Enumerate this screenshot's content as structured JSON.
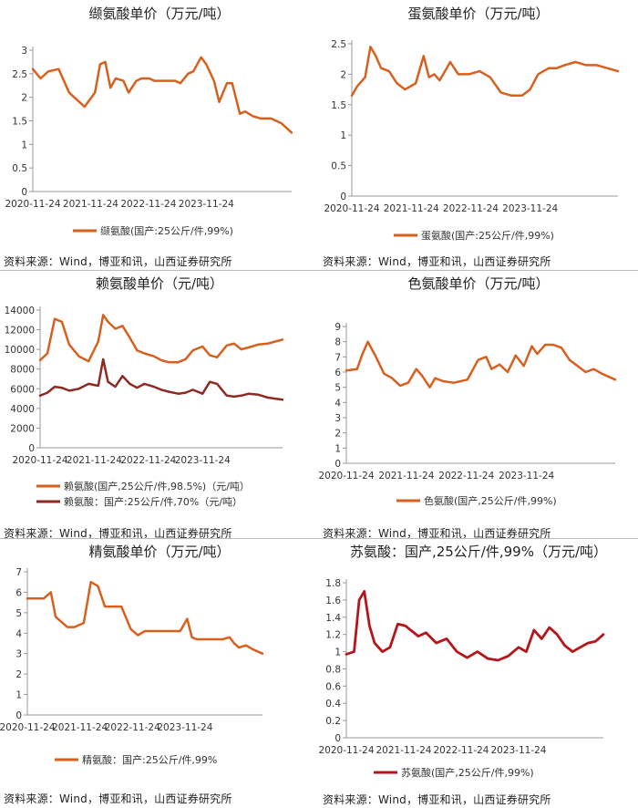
{
  "source_label": "资料来源：Wind，博亚和讯，山西证券研究所",
  "colors": {
    "orange": "#D7601F",
    "darkred": "#8F2A22",
    "red": "#B5161C",
    "axis": "#999999"
  },
  "chart_data": [
    {
      "type": "line",
      "title": "缬氨酸单价（万元/吨）",
      "xlabels": [
        "2020-11-24",
        "2021-11-24",
        "2022-11-24",
        "2023-11-24"
      ],
      "yticks": [
        "0",
        "0.5",
        "1",
        "1.5",
        "2",
        "2.5",
        "3"
      ],
      "ylim": [
        0,
        3
      ],
      "x": [
        0,
        0.03,
        0.06,
        0.1,
        0.14,
        0.17,
        0.2,
        0.24,
        0.26,
        0.28,
        0.3,
        0.32,
        0.35,
        0.37,
        0.4,
        0.42,
        0.45,
        0.47,
        0.55,
        0.57,
        0.6,
        0.62,
        0.65,
        0.67,
        0.7,
        0.72,
        0.75,
        0.77,
        0.8,
        0.82,
        0.85,
        0.88,
        0.92,
        0.96,
        1.0
      ],
      "series": [
        {
          "name": "缬氨酸(国产:25公斤/件,99%)",
          "color": "#D7601F",
          "width": 2.5,
          "values": [
            2.6,
            2.4,
            2.55,
            2.6,
            2.1,
            1.95,
            1.8,
            2.1,
            2.7,
            2.75,
            2.2,
            2.4,
            2.35,
            2.1,
            2.35,
            2.4,
            2.4,
            2.35,
            2.35,
            2.3,
            2.5,
            2.55,
            2.85,
            2.7,
            2.35,
            1.9,
            2.3,
            2.3,
            1.65,
            1.7,
            1.6,
            1.55,
            1.55,
            1.45,
            1.25
          ]
        }
      ]
    },
    {
      "type": "line",
      "title": "蛋氨酸单价（万元/吨）",
      "xlabels": [
        "2020-11-24",
        "2021-11-24",
        "2022-11-24",
        "2023-11-24"
      ],
      "yticks": [
        "0",
        "0.5",
        "1",
        "1.5",
        "2",
        "2.5"
      ],
      "ylim": [
        0,
        2.5
      ],
      "x": [
        0,
        0.02,
        0.05,
        0.07,
        0.09,
        0.11,
        0.14,
        0.17,
        0.2,
        0.24,
        0.27,
        0.29,
        0.31,
        0.33,
        0.37,
        0.4,
        0.44,
        0.48,
        0.52,
        0.56,
        0.6,
        0.64,
        0.67,
        0.7,
        0.74,
        0.77,
        0.8,
        0.84,
        0.88,
        0.92,
        0.96,
        1.0
      ],
      "series": [
        {
          "name": "蛋氨酸(国产:25公斤/件,99%)",
          "color": "#D7601F",
          "width": 2.5,
          "values": [
            1.65,
            1.8,
            1.95,
            2.45,
            2.3,
            2.1,
            2.05,
            1.85,
            1.75,
            1.85,
            2.3,
            1.95,
            2.0,
            1.9,
            2.2,
            2.0,
            2.0,
            2.05,
            1.95,
            1.7,
            1.65,
            1.65,
            1.75,
            2.0,
            2.1,
            2.1,
            2.15,
            2.2,
            2.15,
            2.15,
            2.1,
            2.05
          ]
        }
      ]
    },
    {
      "type": "line",
      "title": "赖氨酸单价（元/吨）",
      "xlabels": [
        "2020-11-24",
        "2021-11-24",
        "2022-11-24",
        "2023-11-24"
      ],
      "yticks": [
        "0",
        "2000",
        "4000",
        "6000",
        "8000",
        "10000",
        "12000",
        "14000"
      ],
      "ylim": [
        0,
        14000
      ],
      "x": [
        0,
        0.03,
        0.06,
        0.09,
        0.12,
        0.16,
        0.2,
        0.24,
        0.26,
        0.28,
        0.31,
        0.34,
        0.37,
        0.4,
        0.43,
        0.47,
        0.5,
        0.53,
        0.57,
        0.6,
        0.63,
        0.67,
        0.7,
        0.73,
        0.77,
        0.8,
        0.83,
        0.86,
        0.9,
        0.94,
        0.97,
        1.0
      ],
      "series": [
        {
          "name": "赖氨酸(国产,25公斤/件,98.5%)（元/吨）",
          "color": "#D7601F",
          "width": 2.5,
          "values": [
            8900,
            9600,
            13100,
            12800,
            10500,
            9300,
            8800,
            10800,
            13500,
            12800,
            12100,
            12400,
            11200,
            9900,
            9600,
            9300,
            8900,
            8700,
            8700,
            9000,
            9900,
            10300,
            9400,
            9200,
            10400,
            10600,
            10000,
            10200,
            10500,
            10600,
            10800,
            11000
          ]
        },
        {
          "name": "赖氨酸：国产:25公斤/件,70%（元/吨）",
          "color": "#8F2A22",
          "width": 2.5,
          "values": [
            5300,
            5600,
            6200,
            6100,
            5800,
            6000,
            6500,
            6300,
            9000,
            6700,
            6200,
            7300,
            6500,
            6100,
            6500,
            6200,
            5900,
            5700,
            5500,
            5600,
            5900,
            5500,
            6700,
            6500,
            5300,
            5200,
            5300,
            5500,
            5400,
            5100,
            5000,
            4900
          ]
        }
      ]
    },
    {
      "type": "line",
      "title": "色氨酸单价（万元/吨）",
      "xlabels": [
        "2020-11-24",
        "2021-11-24",
        "2022-11-24",
        "2023-11-24"
      ],
      "yticks": [
        "0",
        "1",
        "2",
        "3",
        "4",
        "5",
        "6",
        "7",
        "8",
        "9"
      ],
      "ylim": [
        0,
        9
      ],
      "x": [
        0,
        0.04,
        0.06,
        0.08,
        0.11,
        0.14,
        0.17,
        0.2,
        0.23,
        0.26,
        0.28,
        0.31,
        0.33,
        0.36,
        0.4,
        0.45,
        0.49,
        0.52,
        0.54,
        0.57,
        0.6,
        0.63,
        0.66,
        0.69,
        0.71,
        0.74,
        0.77,
        0.8,
        0.83,
        0.86,
        0.89,
        0.92,
        0.95,
        1.0
      ],
      "series": [
        {
          "name": "色氨酸(国产,25公斤/件,99%)",
          "color": "#D7601F",
          "width": 2.5,
          "values": [
            6.1,
            6.2,
            7.2,
            8.0,
            7.0,
            5.9,
            5.6,
            5.1,
            5.3,
            6.2,
            5.8,
            5.0,
            5.6,
            5.4,
            5.3,
            5.5,
            6.8,
            7.0,
            6.2,
            6.5,
            6.0,
            7.1,
            6.4,
            7.7,
            7.2,
            7.8,
            7.8,
            7.6,
            6.8,
            6.4,
            6.0,
            6.2,
            5.9,
            5.5
          ]
        }
      ]
    },
    {
      "type": "line",
      "title": "精氨酸单价（万元/吨）",
      "xlabels": [
        "2020-11-24",
        "2021-11-24",
        "2022-11-24",
        "2023-11-24"
      ],
      "yticks": [
        "0",
        "1",
        "2",
        "3",
        "4",
        "5",
        "6",
        "7"
      ],
      "ylim": [
        0,
        7
      ],
      "x": [
        0,
        0.07,
        0.1,
        0.12,
        0.14,
        0.17,
        0.2,
        0.24,
        0.27,
        0.3,
        0.33,
        0.36,
        0.4,
        0.44,
        0.47,
        0.5,
        0.55,
        0.6,
        0.65,
        0.68,
        0.7,
        0.72,
        0.75,
        0.8,
        0.83,
        0.86,
        0.88,
        0.9,
        0.93,
        0.96,
        1.0
      ],
      "series": [
        {
          "name": "精氨酸：国产:25公斤/件,99%",
          "color": "#D7601F",
          "width": 2.5,
          "values": [
            5.7,
            5.7,
            6.0,
            4.8,
            4.6,
            4.3,
            4.3,
            4.5,
            6.5,
            6.3,
            5.3,
            5.3,
            5.3,
            4.2,
            3.9,
            4.1,
            4.1,
            4.1,
            4.1,
            4.7,
            3.8,
            3.7,
            3.7,
            3.7,
            3.7,
            3.8,
            3.5,
            3.3,
            3.4,
            3.2,
            3.0
          ]
        }
      ]
    },
    {
      "type": "line",
      "title": "苏氨酸：国产,25公斤/件,99%（万元/吨）",
      "xlabels": [
        "2020-11-24",
        "2021-11-24",
        "2022-11-24",
        "2023-11-24"
      ],
      "yticks": [
        "0",
        "0.2",
        "0.4",
        "0.6",
        "0.8",
        "1",
        "1.2",
        "1.4",
        "1.6",
        "1.8"
      ],
      "ylim": [
        0,
        1.8
      ],
      "x": [
        0,
        0.03,
        0.05,
        0.07,
        0.09,
        0.11,
        0.14,
        0.17,
        0.2,
        0.23,
        0.25,
        0.28,
        0.31,
        0.35,
        0.39,
        0.43,
        0.47,
        0.51,
        0.55,
        0.59,
        0.63,
        0.67,
        0.7,
        0.73,
        0.76,
        0.79,
        0.82,
        0.85,
        0.88,
        0.91,
        0.94,
        0.97,
        1.0
      ],
      "series": [
        {
          "name": "苏氨酸(国产,25公斤/件,99%)",
          "color": "#B5161C",
          "width": 2.8,
          "values": [
            0.97,
            1.0,
            1.6,
            1.7,
            1.3,
            1.1,
            1.0,
            1.05,
            1.32,
            1.3,
            1.25,
            1.18,
            1.22,
            1.1,
            1.15,
            1.0,
            0.93,
            1.0,
            0.92,
            0.9,
            0.95,
            1.05,
            1.0,
            1.25,
            1.15,
            1.28,
            1.2,
            1.07,
            1.0,
            1.05,
            1.1,
            1.12,
            1.2
          ]
        }
      ]
    }
  ]
}
